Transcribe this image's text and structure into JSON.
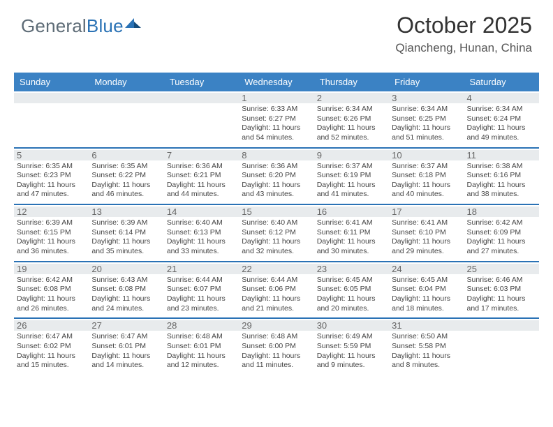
{
  "logo": {
    "text_general": "General",
    "text_blue": "Blue"
  },
  "header": {
    "title": "October 2025",
    "location": "Qiancheng, Hunan, China"
  },
  "colors": {
    "header_bg": "#3b82c4",
    "week_border": "#2a72b5",
    "daynum_bg": "#e8ebed",
    "text": "#444444"
  },
  "day_names": [
    "Sunday",
    "Monday",
    "Tuesday",
    "Wednesday",
    "Thursday",
    "Friday",
    "Saturday"
  ],
  "weeks": [
    [
      {
        "blank": true
      },
      {
        "blank": true
      },
      {
        "blank": true
      },
      {
        "day": "1",
        "sunrise": "Sunrise: 6:33 AM",
        "sunset": "Sunset: 6:27 PM",
        "daylight1": "Daylight: 11 hours",
        "daylight2": "and 54 minutes."
      },
      {
        "day": "2",
        "sunrise": "Sunrise: 6:34 AM",
        "sunset": "Sunset: 6:26 PM",
        "daylight1": "Daylight: 11 hours",
        "daylight2": "and 52 minutes."
      },
      {
        "day": "3",
        "sunrise": "Sunrise: 6:34 AM",
        "sunset": "Sunset: 6:25 PM",
        "daylight1": "Daylight: 11 hours",
        "daylight2": "and 51 minutes."
      },
      {
        "day": "4",
        "sunrise": "Sunrise: 6:34 AM",
        "sunset": "Sunset: 6:24 PM",
        "daylight1": "Daylight: 11 hours",
        "daylight2": "and 49 minutes."
      }
    ],
    [
      {
        "day": "5",
        "sunrise": "Sunrise: 6:35 AM",
        "sunset": "Sunset: 6:23 PM",
        "daylight1": "Daylight: 11 hours",
        "daylight2": "and 47 minutes."
      },
      {
        "day": "6",
        "sunrise": "Sunrise: 6:35 AM",
        "sunset": "Sunset: 6:22 PM",
        "daylight1": "Daylight: 11 hours",
        "daylight2": "and 46 minutes."
      },
      {
        "day": "7",
        "sunrise": "Sunrise: 6:36 AM",
        "sunset": "Sunset: 6:21 PM",
        "daylight1": "Daylight: 11 hours",
        "daylight2": "and 44 minutes."
      },
      {
        "day": "8",
        "sunrise": "Sunrise: 6:36 AM",
        "sunset": "Sunset: 6:20 PM",
        "daylight1": "Daylight: 11 hours",
        "daylight2": "and 43 minutes."
      },
      {
        "day": "9",
        "sunrise": "Sunrise: 6:37 AM",
        "sunset": "Sunset: 6:19 PM",
        "daylight1": "Daylight: 11 hours",
        "daylight2": "and 41 minutes."
      },
      {
        "day": "10",
        "sunrise": "Sunrise: 6:37 AM",
        "sunset": "Sunset: 6:18 PM",
        "daylight1": "Daylight: 11 hours",
        "daylight2": "and 40 minutes."
      },
      {
        "day": "11",
        "sunrise": "Sunrise: 6:38 AM",
        "sunset": "Sunset: 6:16 PM",
        "daylight1": "Daylight: 11 hours",
        "daylight2": "and 38 minutes."
      }
    ],
    [
      {
        "day": "12",
        "sunrise": "Sunrise: 6:39 AM",
        "sunset": "Sunset: 6:15 PM",
        "daylight1": "Daylight: 11 hours",
        "daylight2": "and 36 minutes."
      },
      {
        "day": "13",
        "sunrise": "Sunrise: 6:39 AM",
        "sunset": "Sunset: 6:14 PM",
        "daylight1": "Daylight: 11 hours",
        "daylight2": "and 35 minutes."
      },
      {
        "day": "14",
        "sunrise": "Sunrise: 6:40 AM",
        "sunset": "Sunset: 6:13 PM",
        "daylight1": "Daylight: 11 hours",
        "daylight2": "and 33 minutes."
      },
      {
        "day": "15",
        "sunrise": "Sunrise: 6:40 AM",
        "sunset": "Sunset: 6:12 PM",
        "daylight1": "Daylight: 11 hours",
        "daylight2": "and 32 minutes."
      },
      {
        "day": "16",
        "sunrise": "Sunrise: 6:41 AM",
        "sunset": "Sunset: 6:11 PM",
        "daylight1": "Daylight: 11 hours",
        "daylight2": "and 30 minutes."
      },
      {
        "day": "17",
        "sunrise": "Sunrise: 6:41 AM",
        "sunset": "Sunset: 6:10 PM",
        "daylight1": "Daylight: 11 hours",
        "daylight2": "and 29 minutes."
      },
      {
        "day": "18",
        "sunrise": "Sunrise: 6:42 AM",
        "sunset": "Sunset: 6:09 PM",
        "daylight1": "Daylight: 11 hours",
        "daylight2": "and 27 minutes."
      }
    ],
    [
      {
        "day": "19",
        "sunrise": "Sunrise: 6:42 AM",
        "sunset": "Sunset: 6:08 PM",
        "daylight1": "Daylight: 11 hours",
        "daylight2": "and 26 minutes."
      },
      {
        "day": "20",
        "sunrise": "Sunrise: 6:43 AM",
        "sunset": "Sunset: 6:08 PM",
        "daylight1": "Daylight: 11 hours",
        "daylight2": "and 24 minutes."
      },
      {
        "day": "21",
        "sunrise": "Sunrise: 6:44 AM",
        "sunset": "Sunset: 6:07 PM",
        "daylight1": "Daylight: 11 hours",
        "daylight2": "and 23 minutes."
      },
      {
        "day": "22",
        "sunrise": "Sunrise: 6:44 AM",
        "sunset": "Sunset: 6:06 PM",
        "daylight1": "Daylight: 11 hours",
        "daylight2": "and 21 minutes."
      },
      {
        "day": "23",
        "sunrise": "Sunrise: 6:45 AM",
        "sunset": "Sunset: 6:05 PM",
        "daylight1": "Daylight: 11 hours",
        "daylight2": "and 20 minutes."
      },
      {
        "day": "24",
        "sunrise": "Sunrise: 6:45 AM",
        "sunset": "Sunset: 6:04 PM",
        "daylight1": "Daylight: 11 hours",
        "daylight2": "and 18 minutes."
      },
      {
        "day": "25",
        "sunrise": "Sunrise: 6:46 AM",
        "sunset": "Sunset: 6:03 PM",
        "daylight1": "Daylight: 11 hours",
        "daylight2": "and 17 minutes."
      }
    ],
    [
      {
        "day": "26",
        "sunrise": "Sunrise: 6:47 AM",
        "sunset": "Sunset: 6:02 PM",
        "daylight1": "Daylight: 11 hours",
        "daylight2": "and 15 minutes."
      },
      {
        "day": "27",
        "sunrise": "Sunrise: 6:47 AM",
        "sunset": "Sunset: 6:01 PM",
        "daylight1": "Daylight: 11 hours",
        "daylight2": "and 14 minutes."
      },
      {
        "day": "28",
        "sunrise": "Sunrise: 6:48 AM",
        "sunset": "Sunset: 6:01 PM",
        "daylight1": "Daylight: 11 hours",
        "daylight2": "and 12 minutes."
      },
      {
        "day": "29",
        "sunrise": "Sunrise: 6:48 AM",
        "sunset": "Sunset: 6:00 PM",
        "daylight1": "Daylight: 11 hours",
        "daylight2": "and 11 minutes."
      },
      {
        "day": "30",
        "sunrise": "Sunrise: 6:49 AM",
        "sunset": "Sunset: 5:59 PM",
        "daylight1": "Daylight: 11 hours",
        "daylight2": "and 9 minutes."
      },
      {
        "day": "31",
        "sunrise": "Sunrise: 6:50 AM",
        "sunset": "Sunset: 5:58 PM",
        "daylight1": "Daylight: 11 hours",
        "daylight2": "and 8 minutes."
      },
      {
        "blank": true
      }
    ]
  ]
}
